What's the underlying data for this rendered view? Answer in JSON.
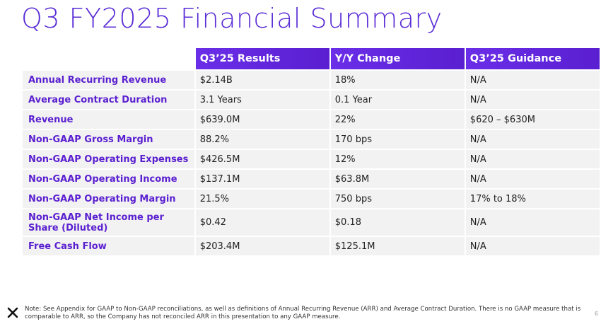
{
  "title": "Q3 FY2025 Financial Summary",
  "table": {
    "headers": [
      "Q3’25 Results",
      "Y/Y Change",
      "Q3’25 Guidance"
    ],
    "rows": [
      {
        "metric": "Annual Recurring Revenue",
        "results": "$2.14B",
        "yy": "18%",
        "guidance": "N/A"
      },
      {
        "metric": "Average Contract Duration",
        "results": "3.1 Years",
        "yy": "0.1 Year",
        "guidance": "N/A"
      },
      {
        "metric": "Revenue",
        "results": "$639.0M",
        "yy": "22%",
        "guidance": "$620 – $630M"
      },
      {
        "metric": "Non-GAAP Gross Margin",
        "results": "88.2%",
        "yy": "170 bps",
        "guidance": "N/A"
      },
      {
        "metric": "Non-GAAP Operating Expenses",
        "results": "$426.5M",
        "yy": "12%",
        "guidance": "N/A"
      },
      {
        "metric": "Non-GAAP Operating Income",
        "results": "$137.1M",
        "yy": "$63.8M",
        "guidance": "N/A"
      },
      {
        "metric": "Non-GAAP Operating Margin",
        "results": "21.5%",
        "yy": "750 bps",
        "guidance": "17% to 18%"
      },
      {
        "metric": "Non-GAAP Net Income per Share (Diluted)",
        "results": "$0.42",
        "yy": "$0.18",
        "guidance": "N/A"
      },
      {
        "metric": "Free Cash Flow",
        "results": "$203.4M",
        "yy": "$125.1M",
        "guidance": "N/A"
      }
    ]
  },
  "footer": {
    "note": "Note: See Appendix for GAAP to Non-GAAP reconciliations, as well as definitions of Annual Recurring Revenue (ARR) and Average Contract Duration. There is no GAAP measure that is comparable to ARR, so the Company has not reconciled ARR in this presentation to any GAAP measure.",
    "page": "6",
    "logo_icon": "x-logo-icon"
  },
  "colors": {
    "accent": "#5a1fd0",
    "header_bg": "#6a2ee8",
    "row_bg": "#f2f2f2"
  }
}
